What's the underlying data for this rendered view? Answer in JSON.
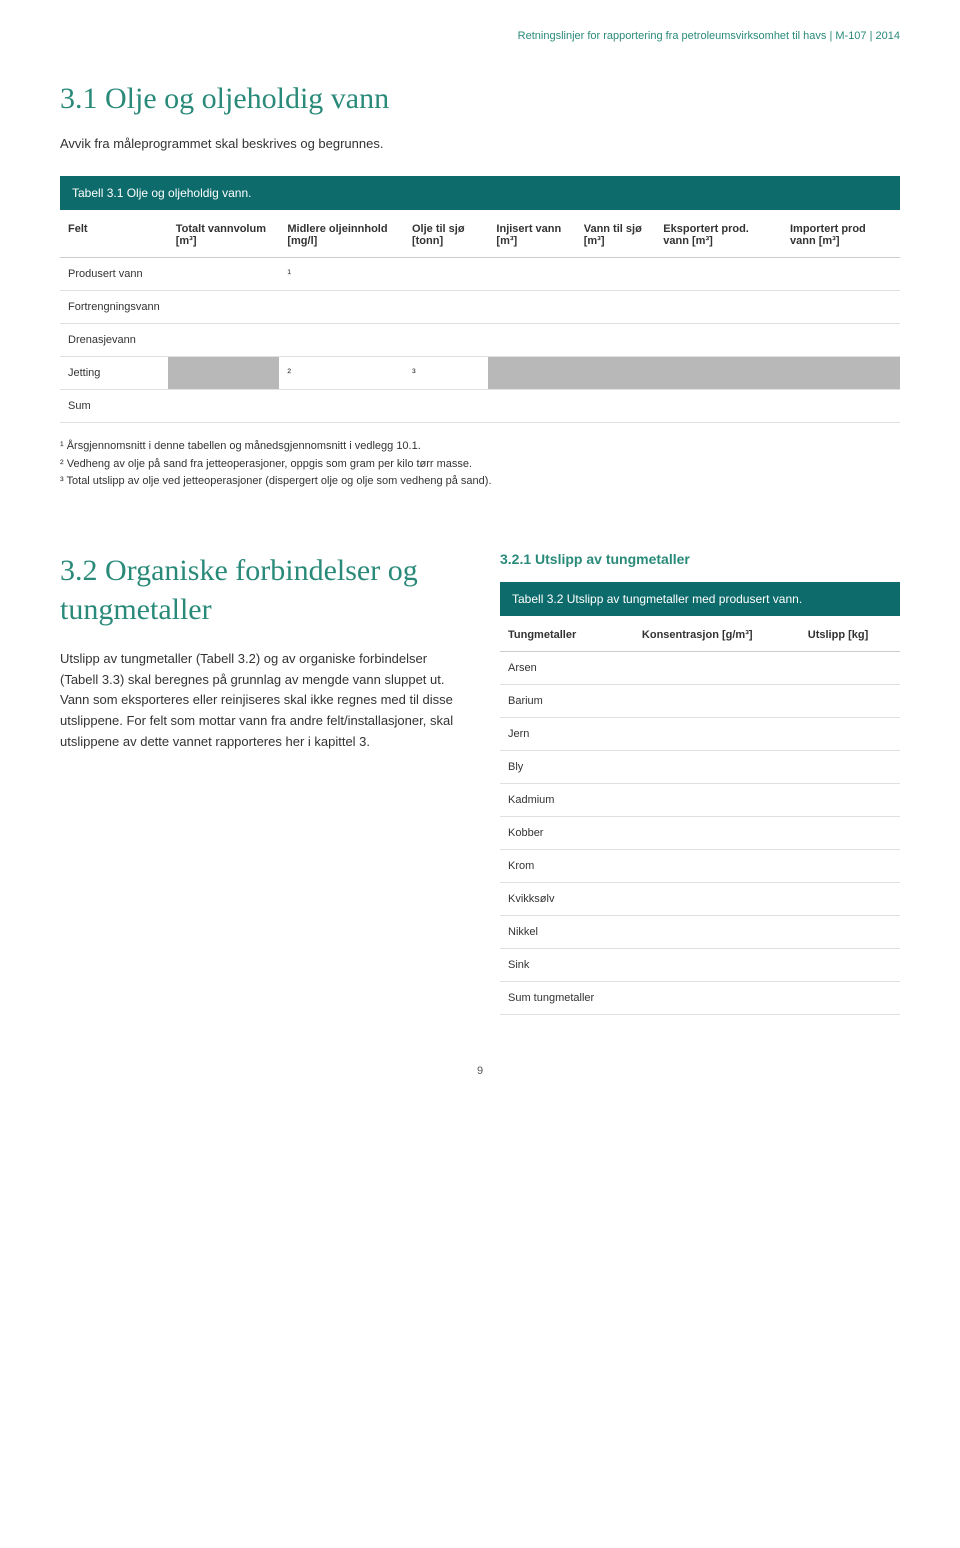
{
  "header": {
    "text": "Retningslinjer for rapportering fra petroleumsvirksomhet til havs | M-107 | 2014",
    "color": "#2a8a7a"
  },
  "section31": {
    "heading": "3.1 Olje og oljeholdig vann",
    "intro": "Avvik fra måleprogrammet skal beskrives og begrunnes.",
    "table_caption": "Tabell 3.1 Olje og oljeholdig vann.",
    "columns": [
      "Felt",
      "Totalt vannvolum [m³]",
      "Midlere oljeinnhold [mg/l]",
      "Olje til sjø [tonn]",
      "Injisert vann [m³]",
      "Vann til sjø [m³]",
      "Eksportert prod. vann [m³]",
      "Importert prod vann [m³]"
    ],
    "rows": [
      {
        "label": "Produsert vann",
        "cells": [
          "",
          "¹",
          "",
          "",
          "",
          "",
          ""
        ],
        "shaded": [
          false,
          false,
          false,
          false,
          false,
          false,
          false
        ]
      },
      {
        "label": "Fortrengningsvann",
        "cells": [
          "",
          "",
          "",
          "",
          "",
          "",
          ""
        ],
        "shaded": [
          false,
          false,
          false,
          false,
          false,
          false,
          false
        ]
      },
      {
        "label": "Drenasjevann",
        "cells": [
          "",
          "",
          "",
          "",
          "",
          "",
          ""
        ],
        "shaded": [
          false,
          false,
          false,
          false,
          false,
          false,
          false
        ]
      },
      {
        "label": "Jetting",
        "cells": [
          "",
          "²",
          "³",
          "",
          "",
          "",
          ""
        ],
        "shaded": [
          true,
          false,
          false,
          true,
          true,
          true,
          true
        ]
      },
      {
        "label": "Sum",
        "cells": [
          "",
          "",
          "",
          "",
          "",
          "",
          ""
        ],
        "shaded": [
          false,
          false,
          false,
          false,
          false,
          false,
          false
        ]
      }
    ],
    "footnotes": [
      "¹ Årsgjennomsnitt i denne tabellen og månedsgjennomsnitt i vedlegg 10.1.",
      "² Vedheng av olje på sand fra jetteoperasjoner, oppgis som gram per kilo tørr masse.",
      "³ Total utslipp av olje ved jetteoperasjoner (dispergert olje og olje som vedheng på sand)."
    ]
  },
  "section32": {
    "heading": "3.2 Organiske forbindelser og tungmetaller",
    "body": "Utslipp av tungmetaller (Tabell 3.2) og av organiske forbindelser (Tabell 3.3) skal beregnes på grunnlag av mengde vann sluppet ut. Vann som eksporteres eller reinjiseres skal ikke regnes med til disse utslippene. For felt som mottar vann fra andre felt/installasjoner, skal utslippene av dette vannet rapporteres her i kapittel 3.",
    "sub_heading": "3.2.1 Utslipp av tungmetaller",
    "table_caption": "Tabell 3.2 Utslipp av tungmetaller med produsert vann.",
    "columns": [
      "Tungmetaller",
      "Konsentrasjon [g/m³]",
      "Utslipp [kg]"
    ],
    "rows": [
      "Arsen",
      "Barium",
      "Jern",
      "Bly",
      "Kadmium",
      "Kobber",
      "Krom",
      "Kvikksølv",
      "Nikkel",
      "Sink",
      "Sum tungmetaller"
    ]
  },
  "page_number": "9",
  "colors": {
    "teal_text": "#2a8a7a",
    "teal_bg": "#0d6b6b",
    "shaded_cell": "#b8b8b8",
    "border": "#e0e0e0"
  }
}
